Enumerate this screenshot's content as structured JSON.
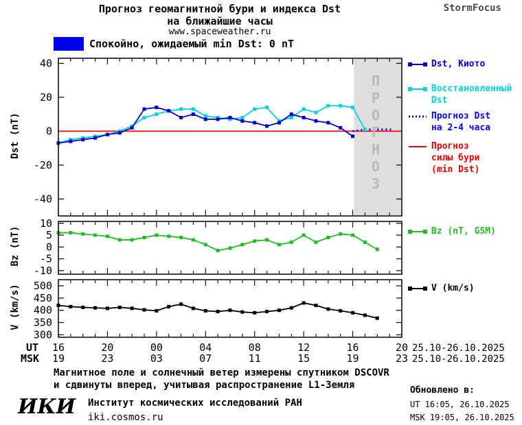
{
  "header": {
    "title_line1": "Прогноз геомагнитной бури и индекса Dst",
    "title_line2": "на ближайшие часы",
    "url": "www.spaceweather.ru",
    "brand": "StormFocus"
  },
  "status": {
    "label": "Спокойно, ожидаемый min Dst: 0 nT",
    "swatch_color": "#0000ee"
  },
  "forecast_vertical": "П\nР\nО\nГ\nН\nО\nЗ",
  "chart_data": [
    {
      "type": "line",
      "title": "Прогноз геомагнитной бури и индекса Dst на ближайшие часы",
      "ylabel": "Dst (nT)",
      "ylim": [
        -50,
        43
      ],
      "yticks": [
        -40,
        -20,
        0,
        20,
        40
      ],
      "xlim": [
        0,
        28
      ],
      "forecast_region": {
        "start": 24.1,
        "end": 28,
        "label": "ПРОГНОЗ"
      },
      "series": [
        {
          "name": "Dst, Киото",
          "legend": [
            "Dst, Киото"
          ],
          "color": "#0000cd",
          "marker": "square",
          "style": "solid",
          "x": [
            0,
            1,
            2,
            3,
            4,
            5,
            6,
            7,
            8,
            9,
            10,
            11,
            12,
            13,
            14,
            15,
            16,
            17,
            18,
            19,
            20,
            21,
            22,
            23,
            24
          ],
          "values": [
            -7,
            -6,
            -5,
            -4,
            -2,
            -1,
            2,
            13,
            14,
            12,
            8,
            10,
            7,
            7,
            8,
            6,
            5,
            3,
            5,
            10,
            8,
            6,
            5,
            2,
            -3
          ]
        },
        {
          "name": "Восстановленный Dst",
          "legend": [
            "Восстановленный",
            "Dst"
          ],
          "color": "#00d2dc",
          "marker": "square",
          "style": "solid",
          "x": [
            0,
            1,
            2,
            3,
            4,
            5,
            6,
            7,
            8,
            9,
            10,
            11,
            12,
            13,
            14,
            15,
            16,
            17,
            18,
            19,
            20,
            21,
            22,
            23,
            24,
            25
          ],
          "values": [
            -7,
            -5,
            -4,
            -3,
            -2,
            0,
            3,
            8,
            10,
            12,
            13,
            13,
            9,
            8,
            7,
            8,
            13,
            14,
            6,
            8,
            13,
            11,
            15,
            15,
            14,
            1
          ]
        },
        {
          "name": "Прогноз Dst на 2-4 часа",
          "legend": [
            "Прогноз Dst",
            "на 2-4 часа"
          ],
          "color": "#0000ff",
          "marker": "none",
          "style": "dotted",
          "x": [
            24,
            25,
            26,
            27.3
          ],
          "values": [
            0,
            1,
            1,
            1
          ]
        },
        {
          "name": "Прогноз силы бури (min Dst)",
          "legend": [
            "Прогноз",
            "силы бури",
            "(min Dst)"
          ],
          "color": "#ee0000",
          "marker": "none",
          "style": "solid",
          "x": [
            0,
            28
          ],
          "values": [
            0,
            0
          ]
        }
      ]
    },
    {
      "type": "line",
      "title": "Bz",
      "ylabel": "Bz (nT)",
      "ylim": [
        -11.5,
        10.8
      ],
      "yticks": [
        -10,
        -5,
        0,
        5,
        10
      ],
      "xlim": [
        0,
        28
      ],
      "series": [
        {
          "name": "Bz (nT, GSM)",
          "legend": [
            "Bz (nT, GSM)"
          ],
          "color": "#22bb22",
          "marker": "square",
          "style": "solid",
          "x": [
            0,
            1,
            2,
            3,
            4,
            5,
            6,
            7,
            8,
            9,
            10,
            11,
            12,
            13,
            14,
            15,
            16,
            17,
            18,
            19,
            20,
            21,
            22,
            23,
            24,
            25,
            26
          ],
          "values": [
            6,
            6,
            5.5,
            5,
            4.5,
            3,
            3,
            4,
            5,
            4.5,
            4,
            3,
            1,
            -1.5,
            -0.5,
            1,
            2.5,
            3,
            1,
            2,
            5,
            2,
            4,
            5.5,
            5,
            2,
            -1
          ]
        }
      ]
    },
    {
      "type": "line",
      "title": "V",
      "ylabel": "V (km/s)",
      "ylim": [
        290,
        525
      ],
      "yticks": [
        300,
        350,
        400,
        450,
        500
      ],
      "xlim": [
        0,
        28
      ],
      "series": [
        {
          "name": "V (km/s)",
          "legend": [
            "V (km/s)"
          ],
          "color": "#000000",
          "marker": "square",
          "style": "solid",
          "x": [
            0,
            1,
            2,
            3,
            4,
            5,
            6,
            7,
            8,
            9,
            10,
            11,
            12,
            13,
            14,
            15,
            16,
            17,
            18,
            19,
            20,
            21,
            22,
            23,
            24,
            25,
            26
          ],
          "values": [
            420,
            415,
            412,
            410,
            408,
            412,
            408,
            402,
            398,
            415,
            425,
            408,
            398,
            395,
            400,
            393,
            390,
            395,
            400,
            410,
            430,
            420,
            405,
            398,
            390,
            380,
            368
          ]
        }
      ]
    }
  ],
  "xaxis": {
    "ut_label": "UT",
    "msk_label": "MSK",
    "hours": [
      0,
      4,
      8,
      12,
      16,
      20,
      24,
      28
    ],
    "ut_ticks": [
      "16",
      "20",
      "00",
      "04",
      "08",
      "12",
      "16",
      "20"
    ],
    "msk_ticks": [
      "19",
      "23",
      "03",
      "07",
      "11",
      "15",
      "19",
      "23"
    ],
    "ut_date": "25.10-26.10.2025",
    "msk_date": "25.10-26.10.2025"
  },
  "footnote": {
    "line1": "Магнитное поле и солнечный ветер измерены спутником DSCOVR",
    "line2": "и сдвинуты вперед, учитывая распространение L1-Земля"
  },
  "updated": {
    "title": "Обновлено в:",
    "ut": "UT  16:05, 26.10.2025",
    "msk": "MSK 19:05, 26.10.2025"
  },
  "footer": {
    "logo": "ИКИ",
    "institute": "Институт космических исследований РАН",
    "site": "iki.cosmos.ru"
  }
}
